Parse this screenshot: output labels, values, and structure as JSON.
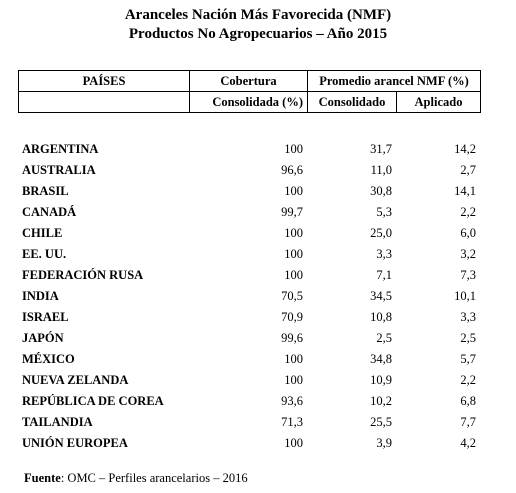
{
  "title": {
    "line1": "Aranceles Nación Más Favorecida (NMF)",
    "line2": "Productos No Agropecuarios – Año 2015"
  },
  "header": {
    "paises": "PAÍSES",
    "cobertura": "Cobertura",
    "promedio": "Promedio arancel NMF (%)",
    "consolidada": "Consolidada (%)",
    "consolidado": "Consolidado",
    "aplicado": "Aplicado"
  },
  "rows": [
    {
      "pais": "ARGENTINA",
      "cobertura": "100",
      "consolidado": "31,7",
      "aplicado": "14,2"
    },
    {
      "pais": "AUSTRALIA",
      "cobertura": "96,6",
      "consolidado": "11,0",
      "aplicado": "2,7"
    },
    {
      "pais": "BRASIL",
      "cobertura": "100",
      "consolidado": "30,8",
      "aplicado": "14,1"
    },
    {
      "pais": "CANADÁ",
      "cobertura": "99,7",
      "consolidado": "5,3",
      "aplicado": "2,2"
    },
    {
      "pais": "CHILE",
      "cobertura": "100",
      "consolidado": "25,0",
      "aplicado": "6,0"
    },
    {
      "pais": "EE. UU.",
      "cobertura": "100",
      "consolidado": "3,3",
      "aplicado": "3,2"
    },
    {
      "pais": "FEDERACIÓN RUSA",
      "cobertura": "100",
      "consolidado": "7,1",
      "aplicado": "7,3"
    },
    {
      "pais": "INDIA",
      "cobertura": "70,5",
      "consolidado": "34,5",
      "aplicado": "10,1"
    },
    {
      "pais": "ISRAEL",
      "cobertura": "70,9",
      "consolidado": "10,8",
      "aplicado": "3,3"
    },
    {
      "pais": "JAPÓN",
      "cobertura": "99,6",
      "consolidado": "2,5",
      "aplicado": "2,5"
    },
    {
      "pais": "MÉXICO",
      "cobertura": "100",
      "consolidado": "34,8",
      "aplicado": "5,7"
    },
    {
      "pais": "NUEVA ZELANDA",
      "cobertura": "100",
      "consolidado": "10,9",
      "aplicado": "2,2"
    },
    {
      "pais": "REPÚBLICA DE COREA",
      "cobertura": "93,6",
      "consolidado": "10,2",
      "aplicado": "6,8"
    },
    {
      "pais": "TAILANDIA",
      "cobertura": "71,3",
      "consolidado": "25,5",
      "aplicado": "7,7"
    },
    {
      "pais": "UNIÓN EUROPEA",
      "cobertura": "100",
      "consolidado": "3,9",
      "aplicado": "4,2"
    }
  ],
  "source": {
    "label": "Fuente",
    "text": ": OMC – Perfiles arancelarios – 2016"
  }
}
